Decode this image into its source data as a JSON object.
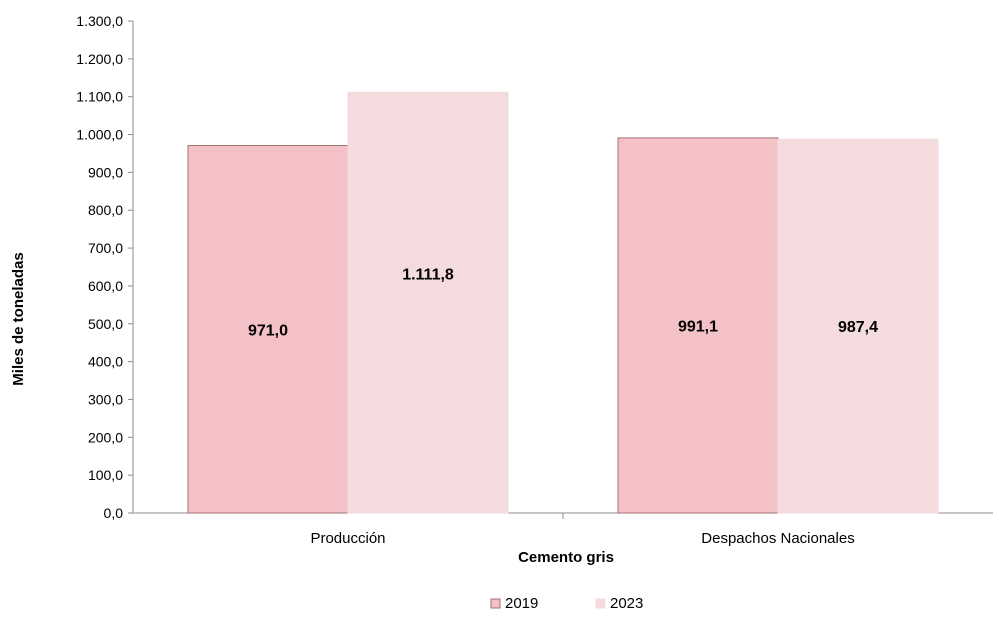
{
  "chart_data": {
    "type": "bar",
    "categories": [
      "Producción",
      "Despachos Nacionales"
    ],
    "series": [
      {
        "name": "2019",
        "values": [
          971.0,
          991.1
        ],
        "data_labels": [
          "971,0",
          "991,1"
        ],
        "color": "#f4c2c6",
        "stroke": "#a07275"
      },
      {
        "name": "2023",
        "values": [
          1111.8,
          987.4
        ],
        "data_labels": [
          "1.111,8",
          "987,4"
        ],
        "color": "#f4dcde",
        "stroke": "#f4dcde"
      }
    ],
    "xlabel": "Cemento gris",
    "ylabel": "Miles de toneladas",
    "ylim": [
      0,
      1300
    ],
    "ytick_values": [
      0,
      100,
      200,
      300,
      400,
      500,
      600,
      700,
      800,
      900,
      1000,
      1100,
      1200,
      1300
    ],
    "ytick_labels": [
      "0,0",
      "100,0",
      "200,0",
      "300,0",
      "400,0",
      "500,0",
      "600,0",
      "700,0",
      "800,0",
      "900,0",
      "1.000,0",
      "1.100,0",
      "1.200,0",
      "1.300,0"
    ],
    "grid": false,
    "legend_position": "bottom-center",
    "axis_color": "#8c8c8c",
    "text_color": "#000000"
  }
}
